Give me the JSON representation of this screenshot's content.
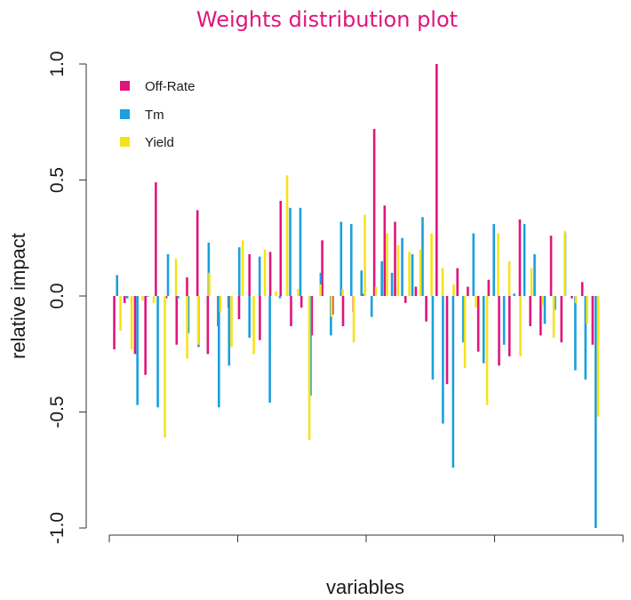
{
  "chart_data": {
    "type": "bar",
    "title": "Weights distribution plot",
    "xlabel": "variables",
    "ylabel": "relative impact",
    "ylim": [
      -1.0,
      1.0
    ],
    "yticks": [
      "-1.0",
      "-0.5",
      "0.0",
      "0.5",
      "1.0"
    ],
    "legend_position": "top-left",
    "grid": false,
    "colors": {
      "title": "#e0157c",
      "Off-Rate": "#e0157c",
      "Tm": "#1aa0dc",
      "Yield": "#f5e31a"
    },
    "series": [
      {
        "name": "Off-Rate",
        "color": "#e0157c",
        "values": [
          -0.23,
          -0.03,
          -0.25,
          -0.34,
          0.49,
          -0.01,
          -0.21,
          0.08,
          0.37,
          -0.25,
          -0.13,
          -0.05,
          -0.1,
          0.18,
          -0.19,
          0.19,
          0.41,
          -0.13,
          -0.05,
          -0.17,
          0.24,
          -0.08,
          -0.13,
          -0.07,
          0.01,
          0.72,
          0.39,
          0.32,
          -0.03,
          0.04,
          -0.11,
          1.0,
          -0.38,
          0.12,
          0.04,
          -0.24,
          0.07,
          -0.3,
          -0.26,
          0.33,
          -0.13,
          -0.17,
          0.26,
          -0.2,
          -0.01,
          0.06,
          -0.21
        ]
      },
      {
        "name": "Tm",
        "color": "#1aa0dc",
        "values": [
          0.09,
          -0.01,
          -0.47,
          0.0,
          -0.48,
          0.18,
          -0.01,
          -0.16,
          -0.22,
          0.23,
          -0.48,
          -0.3,
          0.21,
          -0.18,
          0.17,
          -0.46,
          -0.01,
          0.38,
          0.38,
          -0.43,
          0.1,
          -0.17,
          0.32,
          0.31,
          0.11,
          -0.09,
          0.15,
          0.1,
          0.25,
          0.18,
          0.34,
          -0.36,
          -0.55,
          -0.74,
          -0.2,
          0.27,
          -0.29,
          0.31,
          -0.21,
          0.01,
          0.31,
          0.18,
          -0.12,
          -0.06,
          0.27,
          -0.32,
          -0.36,
          -1.0
        ]
      },
      {
        "name": "Yield",
        "color": "#f5e31a",
        "values": [
          -0.15,
          -0.23,
          -0.02,
          -0.03,
          -0.61,
          0.16,
          -0.27,
          -0.21,
          0.1,
          -0.07,
          -0.22,
          0.24,
          -0.25,
          0.2,
          0.02,
          0.52,
          0.03,
          -0.62,
          0.05,
          -0.09,
          0.03,
          -0.2,
          0.35,
          0.04,
          0.27,
          0.22,
          0.19,
          0.2,
          0.27,
          0.12,
          0.05,
          -0.31,
          -0.05,
          -0.47,
          0.27,
          0.15,
          -0.26,
          0.12,
          -0.04,
          -0.18,
          0.28,
          -0.03,
          -0.12,
          -0.52
        ]
      }
    ]
  }
}
